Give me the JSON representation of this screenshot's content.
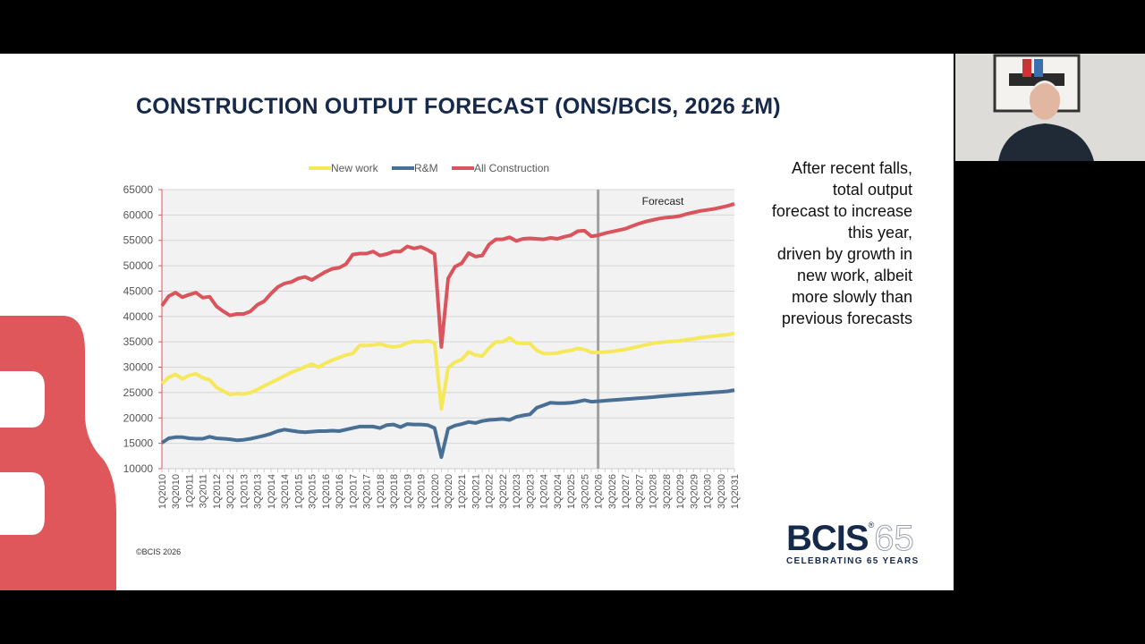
{
  "slide": {
    "title": "CONSTRUCTION OUTPUT FORECAST (ONS/BCIS, 2026 £M)",
    "side_text_lines": [
      "After recent falls,",
      "total output",
      "forecast to increase",
      "this year,",
      "driven by growth in",
      "new work, albeit",
      "more slowly than",
      "previous forecasts"
    ],
    "copyright": "©BCIS 2026",
    "logo": {
      "word": "BCIS",
      "number": "65",
      "tagline": "CELEBRATING 65 YEARS"
    }
  },
  "colors": {
    "title": "#15294a",
    "new_work": "#f5e85a",
    "rm": "#4a6f94",
    "all": "#d9545c",
    "plot_bg": "#f2f2f2",
    "forecast_line": "#a0a0a0",
    "brand_red": "#e0575b"
  },
  "chart_data": {
    "type": "line",
    "title": "",
    "xlabel": "",
    "ylabel": "",
    "ylim": [
      10000,
      65000
    ],
    "yticks": [
      10000,
      15000,
      20000,
      25000,
      30000,
      35000,
      40000,
      45000,
      50000,
      55000,
      60000,
      65000
    ],
    "grid": true,
    "legend": "top",
    "annotation": {
      "text": "Forecast",
      "at": "1Q2026"
    },
    "categories": [
      "1Q2010",
      "2Q2010",
      "3Q2010",
      "4Q2010",
      "1Q2011",
      "2Q2011",
      "3Q2011",
      "4Q2011",
      "1Q2012",
      "2Q2012",
      "3Q2012",
      "4Q2012",
      "1Q2013",
      "2Q2013",
      "3Q2013",
      "4Q2013",
      "1Q2014",
      "2Q2014",
      "3Q2014",
      "4Q2014",
      "1Q2015",
      "2Q2015",
      "3Q2015",
      "4Q2015",
      "1Q2016",
      "2Q2016",
      "3Q2016",
      "4Q2016",
      "1Q2017",
      "2Q2017",
      "3Q2017",
      "4Q2017",
      "1Q2018",
      "2Q2018",
      "3Q2018",
      "4Q2018",
      "1Q2019",
      "2Q2019",
      "3Q2019",
      "4Q2019",
      "1Q2020",
      "2Q2020",
      "3Q2020",
      "4Q2020",
      "1Q2021",
      "2Q2021",
      "3Q2021",
      "4Q2021",
      "1Q2022",
      "2Q2022",
      "3Q2022",
      "4Q2022",
      "1Q2023",
      "2Q2023",
      "3Q2023",
      "4Q2023",
      "1Q2024",
      "2Q2024",
      "3Q2024",
      "4Q2024",
      "1Q2025",
      "2Q2025",
      "3Q2025",
      "4Q2025",
      "1Q2026",
      "2Q2026",
      "3Q2026",
      "4Q2026",
      "1Q2027",
      "2Q2027",
      "3Q2027",
      "4Q2027",
      "1Q2028",
      "2Q2028",
      "3Q2028",
      "4Q2028",
      "1Q2029",
      "2Q2029",
      "3Q2029",
      "4Q2029",
      "1Q2030",
      "2Q2030",
      "3Q2030",
      "4Q2030",
      "1Q2031"
    ],
    "series": [
      {
        "name": "New work",
        "color": "#f5e85a",
        "values": [
          26800,
          28000,
          28600,
          27700,
          28400,
          28700,
          27900,
          27500,
          26000,
          25300,
          24600,
          24800,
          24700,
          25000,
          25600,
          26300,
          27000,
          27600,
          28300,
          29000,
          29500,
          30100,
          30600,
          30000,
          30800,
          31400,
          31900,
          32400,
          32700,
          34300,
          34300,
          34400,
          34600,
          34200,
          34000,
          34200,
          34800,
          35100,
          35000,
          35200,
          34800,
          21800,
          29900,
          31000,
          31500,
          33000,
          32400,
          32200,
          33800,
          35000,
          35000,
          35800,
          34800,
          34700,
          34700,
          33300,
          32700,
          32700,
          32800,
          33100,
          33300,
          33700,
          33500,
          32900,
          32900,
          33000,
          33100,
          33300,
          33500,
          33800,
          34100,
          34400,
          34700,
          34900,
          35000,
          35100,
          35200,
          35400,
          35600,
          35800,
          36000,
          36100,
          36300,
          36400,
          36700
        ]
      },
      {
        "name": "R&M",
        "color": "#4a6f94",
        "values": [
          15100,
          16000,
          16200,
          16200,
          16000,
          15900,
          15900,
          16300,
          16000,
          15900,
          15800,
          15600,
          15700,
          15900,
          16200,
          16500,
          16900,
          17400,
          17700,
          17500,
          17300,
          17200,
          17300,
          17400,
          17400,
          17500,
          17400,
          17700,
          18000,
          18300,
          18300,
          18300,
          18000,
          18600,
          18700,
          18200,
          18800,
          18700,
          18700,
          18600,
          18000,
          12300,
          17900,
          18500,
          18800,
          19200,
          19000,
          19400,
          19600,
          19700,
          19800,
          19600,
          20200,
          20500,
          20700,
          22000,
          22500,
          23000,
          22900,
          22900,
          23000,
          23200,
          23500,
          23200,
          23300,
          23400,
          23500,
          23600,
          23700,
          23800,
          23900,
          24000,
          24100,
          24250,
          24350,
          24450,
          24550,
          24650,
          24750,
          24850,
          24950,
          25050,
          25150,
          25250,
          25500
        ]
      },
      {
        "name": "All Construction",
        "color": "#d9545c",
        "values": [
          42100,
          44000,
          44700,
          43800,
          44300,
          44700,
          43700,
          43900,
          42000,
          41000,
          40200,
          40500,
          40500,
          41000,
          42300,
          43000,
          44500,
          45800,
          46500,
          46800,
          47500,
          47800,
          47200,
          48000,
          48800,
          49400,
          49600,
          50300,
          52200,
          52400,
          52400,
          52800,
          52000,
          52300,
          52800,
          52800,
          53800,
          53400,
          53700,
          53100,
          52300,
          34000,
          47500,
          49800,
          50500,
          52500,
          51800,
          52000,
          54200,
          55200,
          55200,
          55600,
          54900,
          55300,
          55400,
          55300,
          55200,
          55500,
          55300,
          55700,
          56000,
          56800,
          56900,
          55800,
          56000,
          56400,
          56700,
          57000,
          57300,
          57800,
          58300,
          58700,
          59000,
          59300,
          59500,
          59600,
          59800,
          60200,
          60500,
          60800,
          61000,
          61200,
          61500,
          61800,
          62200
        ]
      }
    ]
  }
}
